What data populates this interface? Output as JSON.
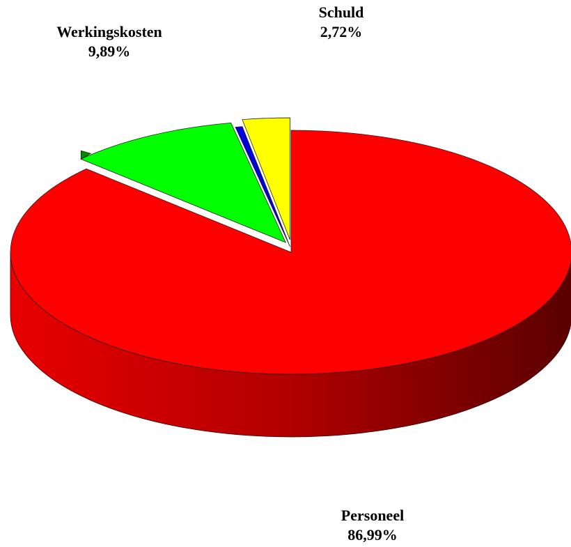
{
  "chart_data": {
    "type": "pie",
    "categories": [
      "Personeel",
      "Werkingskosten",
      null,
      "Schuld"
    ],
    "values": [
      86.99,
      9.89,
      0.4,
      2.72
    ],
    "value_labels": [
      "86,99%",
      "9,89%",
      null,
      "2,72%"
    ],
    "colors": [
      "#ff0000",
      "#00ff00",
      "#0000dd",
      "#ffff00"
    ]
  }
}
